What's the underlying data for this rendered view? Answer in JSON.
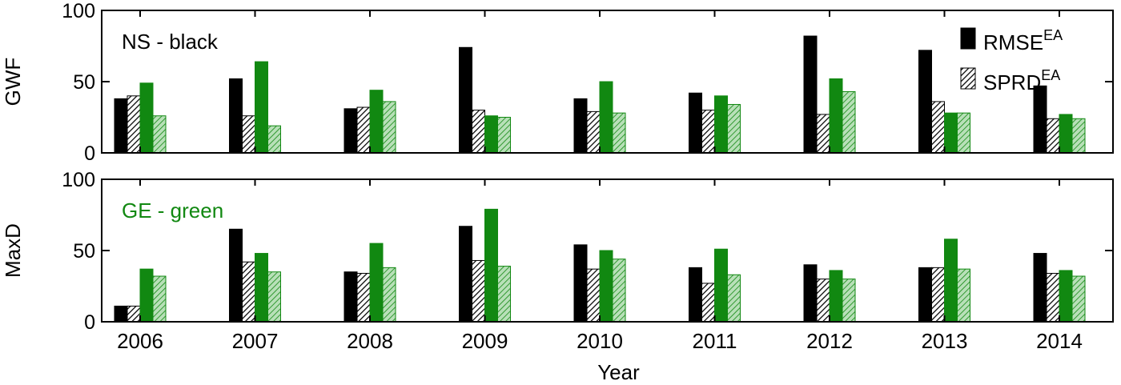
{
  "chart_data": [
    {
      "type": "bar",
      "ylabel": "GWF",
      "ylim": [
        0,
        100
      ],
      "yticks": [
        0,
        50,
        100
      ],
      "annotation": {
        "text": "NS - black",
        "color": "#000000"
      },
      "legend": [
        {
          "text": "RMSE",
          "sup": "EA",
          "hatched": false
        },
        {
          "text": "SPRD",
          "sup": "EA",
          "hatched": true
        }
      ],
      "series": [
        {
          "color": "#000000",
          "hatched": false,
          "values": [
            38,
            52,
            31,
            74,
            38,
            42,
            82,
            72,
            47
          ]
        },
        {
          "color": "#000000",
          "hatched": true,
          "values": [
            40,
            26,
            32,
            30,
            29,
            30,
            27,
            36,
            24
          ]
        },
        {
          "color": "#118811",
          "hatched": false,
          "values": [
            49,
            64,
            44,
            26,
            50,
            40,
            52,
            28,
            27
          ]
        },
        {
          "color": "#118811",
          "hatched": true,
          "values": [
            26,
            19,
            36,
            25,
            28,
            34,
            43,
            28,
            24
          ]
        }
      ]
    },
    {
      "type": "bar",
      "ylabel": "MaxD",
      "xlabel": "Year",
      "ylim": [
        0,
        100
      ],
      "yticks": [
        0,
        50,
        100
      ],
      "categories": [
        "2006",
        "2007",
        "2008",
        "2009",
        "2010",
        "2011",
        "2012",
        "2013",
        "2014"
      ],
      "annotation": {
        "text": "GE - green",
        "color": "#118811"
      },
      "series": [
        {
          "color": "#000000",
          "hatched": false,
          "values": [
            11,
            65,
            35,
            67,
            54,
            38,
            40,
            38,
            48
          ]
        },
        {
          "color": "#000000",
          "hatched": true,
          "values": [
            11,
            42,
            34,
            43,
            37,
            27,
            30,
            38,
            34
          ]
        },
        {
          "color": "#118811",
          "hatched": false,
          "values": [
            37,
            48,
            55,
            79,
            50,
            51,
            36,
            58,
            36
          ]
        },
        {
          "color": "#118811",
          "hatched": true,
          "values": [
            32,
            35,
            38,
            39,
            44,
            33,
            30,
            37,
            32
          ]
        }
      ]
    }
  ]
}
